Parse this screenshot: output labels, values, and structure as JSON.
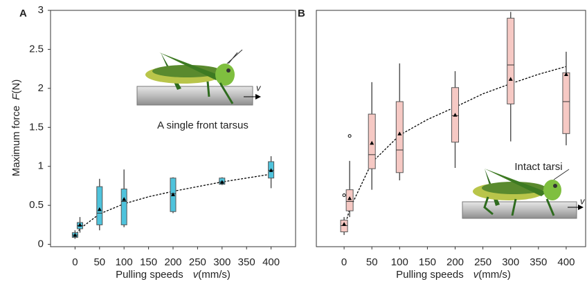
{
  "chart_data": [
    {
      "type": "box",
      "panel": "A",
      "y_label": "Maximum force",
      "y_label_var": "F",
      "y_label_unit": "(N)",
      "x_label": "Pulling speeds",
      "x_label_var": "v",
      "x_label_unit": "(mm/s)",
      "annotation": "A single front tarsus",
      "arrow_label": "v",
      "color": "#4fc3dc",
      "x": [
        0,
        10,
        50,
        100,
        200,
        300,
        400
      ],
      "whisker_low": [
        0.07,
        0.15,
        0.18,
        0.22,
        0.4,
        0.76,
        0.72
      ],
      "q1": [
        0.09,
        0.2,
        0.25,
        0.25,
        0.42,
        0.77,
        0.85
      ],
      "median": [
        0.12,
        0.24,
        0.4,
        0.55,
        0.65,
        0.8,
        0.95
      ],
      "q3": [
        0.15,
        0.28,
        0.74,
        0.71,
        0.85,
        0.85,
        1.06
      ],
      "whisker_high": [
        0.18,
        0.35,
        0.84,
        0.96,
        0.86,
        0.86,
        1.13
      ],
      "mean": [
        0.12,
        0.25,
        0.45,
        0.58,
        0.64,
        0.8,
        0.95
      ],
      "outliers": [],
      "fit_x": [
        0,
        10,
        50,
        100,
        150,
        200,
        250,
        300,
        350,
        400
      ],
      "fit_y": [
        0.1,
        0.2,
        0.39,
        0.52,
        0.61,
        0.68,
        0.74,
        0.8,
        0.85,
        0.9
      ],
      "xlim": [
        -50,
        450
      ],
      "ylim": [
        -0.03,
        3
      ],
      "xticks": [
        0,
        50,
        100,
        150,
        200,
        250,
        300,
        350,
        400
      ],
      "yticks": [
        0,
        0.5,
        1,
        1.5,
        2,
        2.5,
        3
      ]
    },
    {
      "type": "box",
      "panel": "B",
      "x_label": "Pulling speeds",
      "x_label_var": "v",
      "x_label_unit": "(mm/s)",
      "annotation": "Intact tarsi",
      "arrow_label": "v",
      "color": "#f6c9c4",
      "x": [
        0,
        10,
        50,
        100,
        200,
        300,
        400
      ],
      "whisker_low": [
        0.12,
        0.35,
        0.7,
        0.82,
        0.98,
        1.32,
        1.27
      ],
      "q1": [
        0.16,
        0.43,
        0.97,
        0.92,
        1.31,
        1.8,
        1.42
      ],
      "median": [
        0.24,
        0.55,
        1.15,
        1.21,
        1.65,
        2.3,
        1.83
      ],
      "q3": [
        0.31,
        0.7,
        1.67,
        1.83,
        2.01,
        2.9,
        2.2
      ],
      "whisker_high": [
        0.35,
        1.07,
        2.08,
        2.32,
        2.22,
        2.98,
        2.47
      ],
      "mean": [
        0.26,
        0.59,
        1.3,
        1.42,
        1.66,
        2.12,
        2.18
      ],
      "outliers": [
        {
          "x": 0,
          "y": 0.63
        },
        {
          "x": 10,
          "y": 1.39
        }
      ],
      "fit_x": [
        0,
        10,
        50,
        100,
        150,
        200,
        250,
        300,
        350,
        400
      ],
      "fit_y": [
        0.2,
        0.45,
        1.05,
        1.4,
        1.6,
        1.76,
        1.93,
        2.06,
        2.18,
        2.28
      ],
      "xlim": [
        -50,
        435
      ],
      "ylim": [
        -0.03,
        3
      ],
      "xticks": [
        0,
        50,
        100,
        150,
        200,
        250,
        300,
        350,
        400
      ]
    }
  ]
}
